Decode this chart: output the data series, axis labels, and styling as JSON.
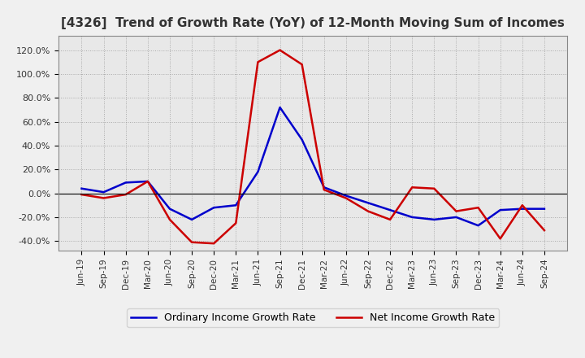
{
  "title": "[4326]  Trend of Growth Rate (YoY) of 12-Month Moving Sum of Incomes",
  "x_labels": [
    "Jun-19",
    "Sep-19",
    "Dec-19",
    "Mar-20",
    "Jun-20",
    "Sep-20",
    "Dec-20",
    "Mar-21",
    "Jun-21",
    "Sep-21",
    "Dec-21",
    "Mar-22",
    "Jun-22",
    "Sep-22",
    "Dec-22",
    "Mar-23",
    "Jun-23",
    "Sep-23",
    "Dec-23",
    "Mar-24",
    "Jun-24",
    "Sep-24"
  ],
  "ordinary_income": [
    0.04,
    0.01,
    0.09,
    0.1,
    -0.13,
    -0.22,
    -0.12,
    -0.1,
    0.18,
    0.72,
    0.45,
    0.05,
    -0.02,
    -0.08,
    -0.14,
    -0.2,
    -0.22,
    -0.2,
    -0.27,
    -0.14,
    -0.13,
    -0.13
  ],
  "net_income": [
    -0.01,
    -0.04,
    -0.01,
    0.1,
    -0.22,
    -0.41,
    -0.42,
    -0.25,
    1.1,
    1.2,
    1.08,
    0.03,
    -0.04,
    -0.15,
    -0.22,
    0.05,
    0.04,
    -0.15,
    -0.12,
    -0.38,
    -0.1,
    -0.31
  ],
  "ordinary_color": "#0000cc",
  "net_color": "#cc0000",
  "background_color": "#f0f0f0",
  "plot_bg_color": "#e8e8e8",
  "grid_color": "#999999",
  "title_color": "#333333",
  "tick_label_color": "#333333",
  "legend_labels": [
    "Ordinary Income Growth Rate",
    "Net Income Growth Rate"
  ],
  "yticks": [
    -0.4,
    -0.2,
    0.0,
    0.2,
    0.4,
    0.6,
    0.8,
    1.0,
    1.2
  ],
  "ylim": [
    -0.48,
    1.32
  ]
}
